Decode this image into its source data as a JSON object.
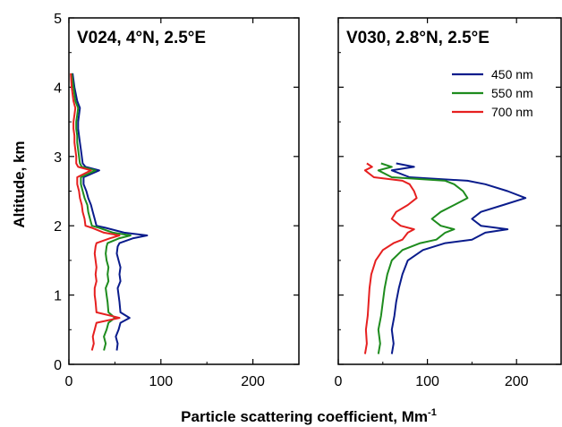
{
  "chart_data": [
    {
      "type": "line",
      "title": "V024, 4°N, 2.5°E",
      "xlabel": "Particle scattering coefficient, Mm-1",
      "ylabel": "Altitude, km",
      "xlim": [
        0,
        250
      ],
      "ylim": [
        0,
        5
      ],
      "xticks": [
        "0",
        "100",
        "200"
      ],
      "yticks": [
        "0",
        "1",
        "2",
        "3",
        "4",
        "5"
      ],
      "grid": false,
      "series": [
        {
          "name": "450 nm",
          "color": "#0a1c8c",
          "points": [
            [
              52,
              0.2
            ],
            [
              53,
              0.3
            ],
            [
              51,
              0.4
            ],
            [
              54,
              0.5
            ],
            [
              56,
              0.6
            ],
            [
              66,
              0.67
            ],
            [
              56,
              0.75
            ],
            [
              55,
              0.9
            ],
            [
              54,
              1.0
            ],
            [
              53,
              1.1
            ],
            [
              56,
              1.2
            ],
            [
              55,
              1.3
            ],
            [
              56,
              1.4
            ],
            [
              54,
              1.5
            ],
            [
              52,
              1.6
            ],
            [
              53,
              1.7
            ],
            [
              55,
              1.75
            ],
            [
              70,
              1.82
            ],
            [
              85,
              1.86
            ],
            [
              60,
              1.9
            ],
            [
              40,
              1.97
            ],
            [
              30,
              2.0
            ],
            [
              28,
              2.1
            ],
            [
              26,
              2.2
            ],
            [
              24,
              2.3
            ],
            [
              21,
              2.4
            ],
            [
              19,
              2.5
            ],
            [
              16,
              2.6
            ],
            [
              16,
              2.7
            ],
            [
              33,
              2.8
            ],
            [
              18,
              2.85
            ],
            [
              15,
              2.9
            ],
            [
              14,
              3.0
            ],
            [
              13,
              3.1
            ],
            [
              12,
              3.2
            ],
            [
              11,
              3.3
            ],
            [
              10,
              3.4
            ],
            [
              10,
              3.5
            ],
            [
              11,
              3.6
            ],
            [
              12,
              3.7
            ],
            [
              9,
              3.8
            ],
            [
              6,
              4.0
            ],
            [
              4,
              4.2
            ]
          ]
        },
        {
          "name": "550 nm",
          "color": "#1e8c1e",
          "points": [
            [
              38,
              0.2
            ],
            [
              40,
              0.3
            ],
            [
              38,
              0.4
            ],
            [
              41,
              0.5
            ],
            [
              43,
              0.6
            ],
            [
              50,
              0.67
            ],
            [
              43,
              0.75
            ],
            [
              42,
              0.9
            ],
            [
              41,
              1.0
            ],
            [
              40,
              1.1
            ],
            [
              43,
              1.2
            ],
            [
              42,
              1.3
            ],
            [
              43,
              1.4
            ],
            [
              41,
              1.5
            ],
            [
              40,
              1.6
            ],
            [
              41,
              1.7
            ],
            [
              42,
              1.75
            ],
            [
              55,
              1.82
            ],
            [
              67,
              1.86
            ],
            [
              48,
              1.9
            ],
            [
              33,
              1.97
            ],
            [
              25,
              2.0
            ],
            [
              23,
              2.1
            ],
            [
              21,
              2.2
            ],
            [
              20,
              2.3
            ],
            [
              17,
              2.4
            ],
            [
              15,
              2.5
            ],
            [
              13,
              2.6
            ],
            [
              13,
              2.7
            ],
            [
              29,
              2.8
            ],
            [
              14,
              2.85
            ],
            [
              12,
              2.9
            ],
            [
              11,
              3.0
            ],
            [
              10,
              3.1
            ],
            [
              9,
              3.2
            ],
            [
              9,
              3.3
            ],
            [
              8,
              3.4
            ],
            [
              8,
              3.5
            ],
            [
              9,
              3.6
            ],
            [
              10,
              3.7
            ],
            [
              7,
              3.8
            ],
            [
              5,
              4.0
            ],
            [
              3,
              4.2
            ]
          ]
        },
        {
          "name": "700 nm",
          "color": "#e62020",
          "points": [
            [
              25,
              0.2
            ],
            [
              27,
              0.3
            ],
            [
              26,
              0.4
            ],
            [
              28,
              0.5
            ],
            [
              30,
              0.6
            ],
            [
              55,
              0.67
            ],
            [
              30,
              0.75
            ],
            [
              29,
              0.9
            ],
            [
              28,
              1.0
            ],
            [
              28,
              1.1
            ],
            [
              30,
              1.2
            ],
            [
              29,
              1.3
            ],
            [
              30,
              1.4
            ],
            [
              29,
              1.5
            ],
            [
              28,
              1.6
            ],
            [
              29,
              1.7
            ],
            [
              30,
              1.75
            ],
            [
              45,
              1.82
            ],
            [
              55,
              1.86
            ],
            [
              38,
              1.9
            ],
            [
              25,
              1.97
            ],
            [
              18,
              2.0
            ],
            [
              17,
              2.1
            ],
            [
              15,
              2.2
            ],
            [
              14,
              2.3
            ],
            [
              12,
              2.4
            ],
            [
              11,
              2.5
            ],
            [
              9,
              2.6
            ],
            [
              9,
              2.7
            ],
            [
              24,
              2.8
            ],
            [
              10,
              2.85
            ],
            [
              8,
              2.9
            ],
            [
              8,
              3.0
            ],
            [
              7,
              3.1
            ],
            [
              6,
              3.2
            ],
            [
              6,
              3.3
            ],
            [
              5,
              3.4
            ],
            [
              5,
              3.5
            ],
            [
              6,
              3.6
            ],
            [
              7,
              3.7
            ],
            [
              5,
              3.8
            ],
            [
              3,
              4.0
            ],
            [
              2,
              4.2
            ]
          ]
        }
      ]
    },
    {
      "type": "line",
      "title": "V030, 2.8°N, 2.5°E",
      "xlabel": "Particle scattering coefficient, Mm-1",
      "ylabel": "",
      "xlim": [
        0,
        250
      ],
      "ylim": [
        0,
        5
      ],
      "xticks": [
        "0",
        "100",
        "200"
      ],
      "yticks": [],
      "grid": false,
      "legend_position": "top-right",
      "series": [
        {
          "name": "450 nm",
          "color": "#0a1c8c",
          "points": [
            [
              60,
              0.15
            ],
            [
              62,
              0.3
            ],
            [
              60,
              0.5
            ],
            [
              63,
              0.7
            ],
            [
              65,
              0.9
            ],
            [
              68,
              1.1
            ],
            [
              72,
              1.3
            ],
            [
              78,
              1.5
            ],
            [
              95,
              1.65
            ],
            [
              120,
              1.75
            ],
            [
              150,
              1.8
            ],
            [
              165,
              1.9
            ],
            [
              190,
              1.95
            ],
            [
              160,
              2.0
            ],
            [
              150,
              2.1
            ],
            [
              160,
              2.2
            ],
            [
              185,
              2.3
            ],
            [
              210,
              2.4
            ],
            [
              190,
              2.5
            ],
            [
              165,
              2.6
            ],
            [
              145,
              2.65
            ],
            [
              80,
              2.7
            ],
            [
              60,
              2.8
            ],
            [
              85,
              2.85
            ],
            [
              65,
              2.9
            ]
          ]
        },
        {
          "name": "550 nm",
          "color": "#1e8c1e",
          "points": [
            [
              45,
              0.15
            ],
            [
              47,
              0.3
            ],
            [
              45,
              0.5
            ],
            [
              48,
              0.7
            ],
            [
              50,
              0.9
            ],
            [
              52,
              1.1
            ],
            [
              55,
              1.3
            ],
            [
              60,
              1.5
            ],
            [
              72,
              1.65
            ],
            [
              92,
              1.75
            ],
            [
              110,
              1.8
            ],
            [
              120,
              1.9
            ],
            [
              130,
              1.95
            ],
            [
              115,
              2.0
            ],
            [
              105,
              2.1
            ],
            [
              115,
              2.2
            ],
            [
              130,
              2.3
            ],
            [
              145,
              2.4
            ],
            [
              140,
              2.5
            ],
            [
              130,
              2.6
            ],
            [
              120,
              2.65
            ],
            [
              60,
              2.7
            ],
            [
              45,
              2.8
            ],
            [
              60,
              2.85
            ],
            [
              48,
              2.9
            ]
          ]
        },
        {
          "name": "700 nm",
          "color": "#e62020",
          "points": [
            [
              30,
              0.15
            ],
            [
              32,
              0.3
            ],
            [
              31,
              0.5
            ],
            [
              33,
              0.7
            ],
            [
              34,
              0.9
            ],
            [
              35,
              1.1
            ],
            [
              37,
              1.3
            ],
            [
              42,
              1.5
            ],
            [
              50,
              1.65
            ],
            [
              62,
              1.75
            ],
            [
              72,
              1.8
            ],
            [
              78,
              1.9
            ],
            [
              85,
              1.95
            ],
            [
              70,
              2.0
            ],
            [
              60,
              2.1
            ],
            [
              65,
              2.2
            ],
            [
              78,
              2.3
            ],
            [
              88,
              2.4
            ],
            [
              85,
              2.5
            ],
            [
              80,
              2.6
            ],
            [
              72,
              2.65
            ],
            [
              40,
              2.7
            ],
            [
              30,
              2.8
            ],
            [
              38,
              2.85
            ],
            [
              32,
              2.9
            ]
          ]
        }
      ]
    }
  ]
}
